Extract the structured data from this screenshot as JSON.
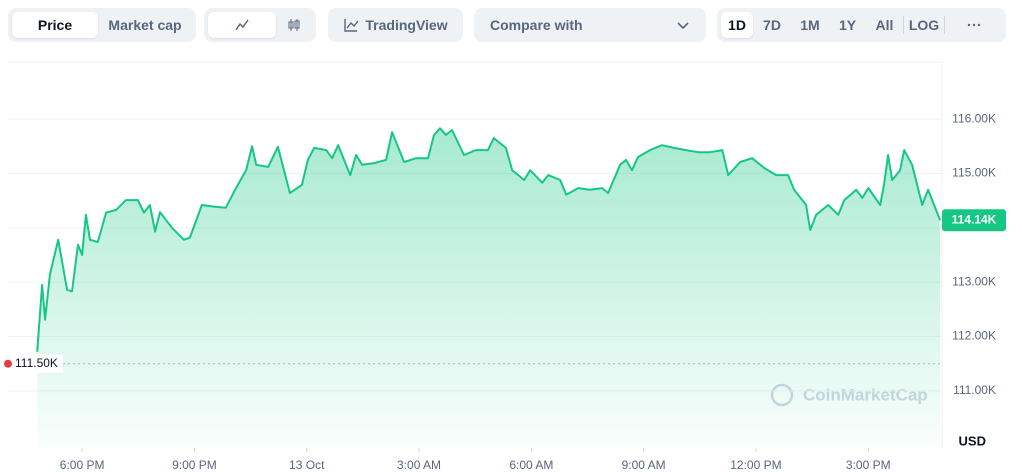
{
  "toolbar": {
    "tabs": [
      "Price",
      "Market cap"
    ],
    "tradingview": "TradingView",
    "compare": "Compare with",
    "ranges": [
      "1D",
      "7D",
      "1M",
      "1Y",
      "All"
    ],
    "log": "LOG"
  },
  "chart_data": {
    "type": "area",
    "color": "#16c784",
    "x": [
      16.8,
      16.93,
      17.01,
      17.14,
      17.36,
      17.6,
      17.73,
      17.89,
      18.0,
      18.1,
      18.21,
      18.42,
      18.64,
      18.91,
      19.17,
      19.49,
      19.65,
      19.81,
      19.95,
      20.08,
      20.4,
      20.72,
      20.88,
      21.2,
      21.52,
      21.84,
      22.11,
      22.38,
      22.54,
      22.65,
      22.97,
      23.23,
      23.55,
      23.87,
      24.03,
      24.2,
      24.52,
      24.68,
      24.84,
      25.16,
      25.32,
      25.48,
      25.8,
      26.12,
      26.28,
      26.6,
      26.92,
      27.24,
      27.4,
      27.56,
      27.72,
      27.88,
      28.2,
      28.52,
      28.84,
      29.0,
      29.32,
      29.49,
      29.81,
      29.97,
      30.29,
      30.45,
      30.77,
      30.93,
      31.25,
      31.57,
      31.89,
      32.05,
      32.37,
      32.53,
      32.69,
      32.85,
      33.17,
      33.49,
      33.81,
      34.13,
      34.45,
      34.78,
      35.1,
      35.26,
      35.58,
      35.9,
      36.22,
      36.54,
      36.86,
      37.02,
      37.34,
      37.45,
      37.61,
      37.93,
      38.2,
      38.36,
      38.68,
      38.84,
      39.0,
      39.32,
      39.42,
      39.53,
      39.64,
      39.85,
      39.96,
      40.17,
      40.44,
      40.6,
      40.81,
      40.92
    ],
    "values": [
      111.72,
      112.95,
      112.31,
      113.14,
      113.78,
      112.86,
      112.83,
      113.69,
      113.5,
      114.24,
      113.78,
      113.74,
      114.28,
      114.33,
      114.51,
      114.51,
      114.28,
      114.42,
      113.93,
      114.29,
      114.0,
      113.78,
      113.82,
      114.42,
      114.39,
      114.37,
      114.73,
      115.06,
      115.5,
      115.16,
      115.12,
      115.49,
      114.64,
      114.79,
      115.25,
      115.47,
      115.43,
      115.28,
      115.52,
      114.97,
      115.34,
      115.16,
      115.19,
      115.25,
      115.76,
      115.21,
      115.28,
      115.28,
      115.71,
      115.83,
      115.71,
      115.8,
      115.34,
      115.43,
      115.43,
      115.65,
      115.47,
      115.06,
      114.88,
      115.06,
      114.83,
      114.97,
      114.88,
      114.61,
      114.73,
      114.7,
      114.73,
      114.64,
      115.16,
      115.25,
      115.06,
      115.3,
      115.43,
      115.52,
      115.47,
      115.43,
      115.39,
      115.39,
      115.43,
      114.97,
      115.21,
      115.28,
      115.1,
      114.97,
      114.97,
      114.7,
      114.42,
      113.96,
      114.24,
      114.42,
      114.24,
      114.51,
      114.7,
      114.55,
      114.73,
      114.42,
      114.79,
      115.34,
      114.88,
      115.06,
      115.43,
      115.16,
      114.42,
      114.7,
      114.33,
      114.14
    ],
    "xlim": [
      16.02,
      40.97
    ],
    "xticks": [
      {
        "value": 18,
        "label": "6:00 PM"
      },
      {
        "value": 21,
        "label": "9:00 PM"
      },
      {
        "value": 24,
        "label": "13 Oct"
      },
      {
        "value": 27,
        "label": "3:00 AM"
      },
      {
        "value": 30,
        "label": "6:00 AM"
      },
      {
        "value": 33,
        "label": "9:00 AM"
      },
      {
        "value": 36,
        "label": "12:00 PM"
      },
      {
        "value": 39,
        "label": "3:00 PM"
      }
    ],
    "ylim": [
      109.95,
      117.05
    ],
    "yticks": [
      {
        "value": 111,
        "label": "111.00K"
      },
      {
        "value": 112,
        "label": "112.00K"
      },
      {
        "value": 113,
        "label": "113.00K"
      },
      {
        "value": 114,
        "label": "114.00K"
      },
      {
        "value": 115,
        "label": "115.00K"
      },
      {
        "value": 116,
        "label": "116.00K"
      }
    ],
    "grid": true,
    "reference": {
      "value": 111.5,
      "label": "111.50K",
      "color": "#ea3943"
    },
    "current": {
      "value": 114.14,
      "label": "114.14K"
    },
    "currency": "USD",
    "watermark": "CoinMarketCap"
  }
}
